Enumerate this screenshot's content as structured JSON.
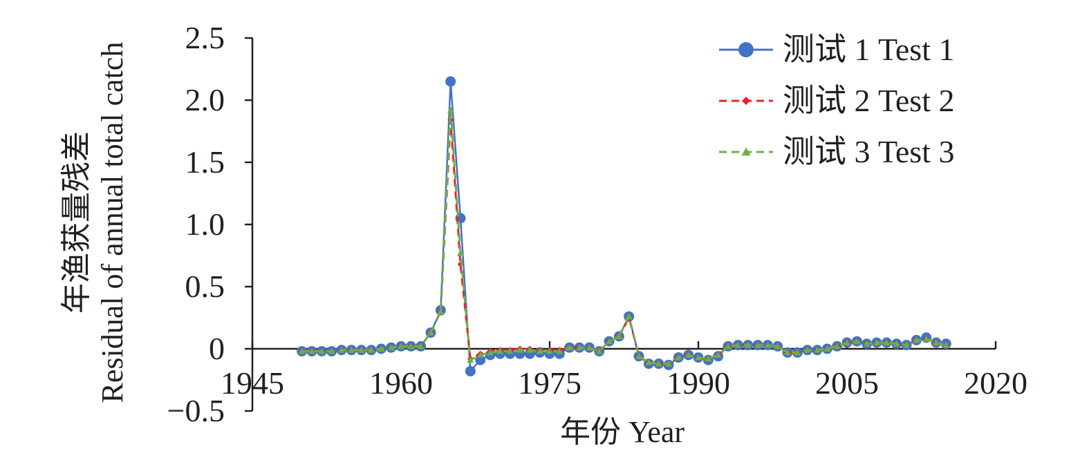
{
  "chart_data": {
    "type": "line",
    "xlabel": "年份 Year",
    "ylabel_cn": "年渔获量残差",
    "ylabel_en": "Residual of annual total catch",
    "xlim": [
      1945,
      2020
    ],
    "ylim": [
      -0.5,
      2.5
    ],
    "x_ticks": [
      "1945",
      "1960",
      "1975",
      "1990",
      "2005",
      "2020"
    ],
    "x_tick_values": [
      1945,
      1960,
      1975,
      1990,
      2005,
      2020
    ],
    "y_ticks": [
      "2.5",
      "2.0",
      "1.5",
      "1.0",
      "0.5",
      "0",
      "−0.5"
    ],
    "y_tick_values": [
      2.5,
      2.0,
      1.5,
      1.0,
      0.5,
      0,
      -0.5
    ],
    "grid": false,
    "legend_position": "top-right",
    "x": [
      1950,
      1951,
      1952,
      1953,
      1954,
      1955,
      1956,
      1957,
      1958,
      1959,
      1960,
      1961,
      1962,
      1963,
      1964,
      1965,
      1966,
      1967,
      1968,
      1969,
      1970,
      1971,
      1972,
      1973,
      1974,
      1975,
      1976,
      1977,
      1978,
      1979,
      1980,
      1981,
      1982,
      1983,
      1984,
      1985,
      1986,
      1987,
      1988,
      1989,
      1990,
      1991,
      1992,
      1993,
      1994,
      1995,
      1996,
      1997,
      1998,
      1999,
      2000,
      2001,
      2002,
      2003,
      2004,
      2005,
      2006,
      2007,
      2008,
      2009,
      2010,
      2011,
      2012,
      2013,
      2014,
      2015
    ],
    "series": [
      {
        "name": "测试 1 Test 1",
        "color": "#4472c4",
        "marker": "circle",
        "dash": "solid",
        "values": [
          -0.02,
          -0.02,
          -0.02,
          -0.02,
          -0.01,
          -0.01,
          -0.01,
          -0.01,
          0,
          0.01,
          0.02,
          0.02,
          0.02,
          0.13,
          0.31,
          2.15,
          1.05,
          -0.18,
          -0.09,
          -0.05,
          -0.04,
          -0.04,
          -0.04,
          -0.04,
          -0.03,
          -0.04,
          -0.04,
          0.01,
          0.01,
          0.01,
          -0.02,
          0.06,
          0.1,
          0.26,
          -0.06,
          -0.12,
          -0.12,
          -0.13,
          -0.07,
          -0.05,
          -0.07,
          -0.09,
          -0.06,
          0.02,
          0.03,
          0.03,
          0.03,
          0.03,
          0.02,
          -0.03,
          -0.03,
          -0.01,
          -0.01,
          0,
          0.02,
          0.05,
          0.06,
          0.04,
          0.05,
          0.05,
          0.04,
          0.03,
          0.07,
          0.09,
          0.05,
          0.04
        ]
      },
      {
        "name": "测试 2 Test 2",
        "color": "#e8232a",
        "marker": "diamond",
        "dash": "dashed",
        "values": [
          -0.02,
          -0.02,
          -0.02,
          -0.02,
          -0.01,
          -0.01,
          -0.01,
          -0.01,
          0,
          0.01,
          0.02,
          0.02,
          0.02,
          0.13,
          0.3,
          1.84,
          0.68,
          -0.08,
          -0.04,
          -0.02,
          -0.01,
          -0.01,
          0,
          0,
          -0.01,
          -0.01,
          -0.01,
          0.01,
          0.01,
          0.01,
          -0.02,
          0.06,
          0.1,
          0.25,
          -0.06,
          -0.11,
          -0.12,
          -0.12,
          -0.07,
          -0.05,
          -0.07,
          -0.08,
          -0.05,
          0.02,
          0.03,
          0.03,
          0.03,
          0.03,
          0.02,
          -0.03,
          -0.03,
          -0.01,
          -0.01,
          0,
          0.02,
          0.05,
          0.06,
          0.04,
          0.05,
          0.05,
          0.04,
          0.03,
          0.07,
          0.08,
          0.05,
          0.03
        ]
      },
      {
        "name": "测试 3 Test 3",
        "color": "#70ad47",
        "marker": "triangle",
        "dash": "dashed",
        "values": [
          -0.02,
          -0.02,
          -0.02,
          -0.02,
          -0.01,
          -0.01,
          -0.01,
          -0.01,
          0,
          0.01,
          0.02,
          0.02,
          0.02,
          0.13,
          0.3,
          1.92,
          0.77,
          -0.09,
          -0.05,
          -0.03,
          -0.02,
          -0.02,
          -0.01,
          -0.01,
          -0.02,
          -0.02,
          -0.02,
          0.01,
          0.01,
          0.01,
          -0.02,
          0.06,
          0.1,
          0.26,
          -0.06,
          -0.11,
          -0.12,
          -0.12,
          -0.07,
          -0.05,
          -0.07,
          -0.08,
          -0.05,
          0.02,
          0.03,
          0.03,
          0.03,
          0.03,
          0.02,
          -0.03,
          -0.03,
          -0.01,
          -0.01,
          0,
          0.02,
          0.05,
          0.06,
          0.04,
          0.05,
          0.05,
          0.04,
          0.03,
          0.07,
          0.08,
          0.05,
          0.03
        ]
      }
    ]
  }
}
